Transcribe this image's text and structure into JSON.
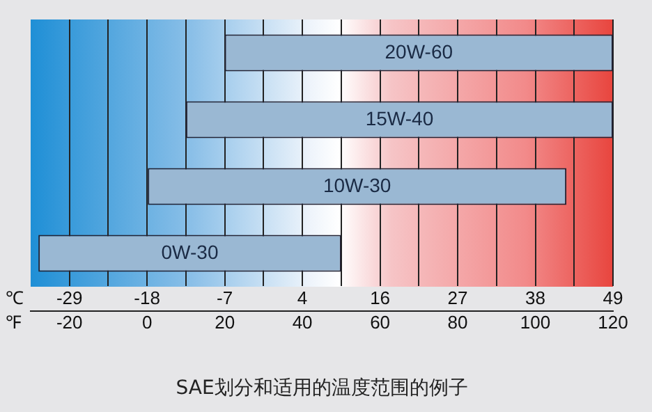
{
  "chart_data": {
    "type": "bar",
    "orientation": "horizontal",
    "title": "SAE划分和适用的温度范围的例子",
    "xlabel": "℉",
    "x2label": "℃",
    "categories": [
      "20W-60",
      "15W-40",
      "10W-30",
      "0W-30"
    ],
    "base": [
      20,
      10,
      0,
      -28
    ],
    "values": [
      100,
      110,
      108,
      78
    ],
    "color": "#9ab8d3",
    "xlim": [
      -30,
      120
    ],
    "xticks": [
      -20,
      {
        "value": -10,
        "label": null
      },
      0,
      {
        "value": 10,
        "label": null
      },
      20,
      {
        "value": 30,
        "label": null
      },
      40,
      {
        "value": 50,
        "label": null
      },
      60,
      {
        "value": 70,
        "label": null
      },
      80,
      {
        "value": 90,
        "label": null
      },
      100,
      {
        "value": 110,
        "label": null
      },
      120
    ],
    "x2lim": [
      -34.44,
      48.89
    ],
    "x2ticks": [
      {
        "value": -28.89,
        "label": "-29"
      },
      {
        "value": -17.78,
        "label": "-18"
      },
      {
        "value": -6.67,
        "label": "-7"
      },
      {
        "value": 4.44,
        "label": "4"
      },
      {
        "value": 15.56,
        "label": "16"
      },
      {
        "value": 26.67,
        "label": "27"
      },
      {
        "value": 37.78,
        "label": "38"
      },
      {
        "value": 48.89,
        "label": "49"
      }
    ],
    "grid": "x",
    "tick_labels": "x",
    "legend": false
  }
}
